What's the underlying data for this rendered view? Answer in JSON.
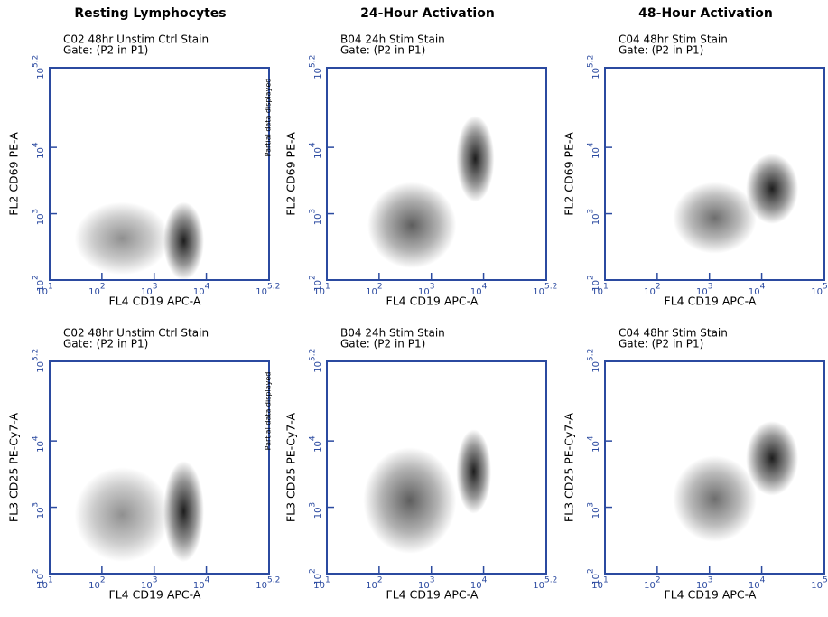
{
  "chart_data": [
    {
      "type": "density",
      "title": "Resting Lymphocytes",
      "sample": "C02 48hr Unstim Ctrl Stain",
      "gate": "Gate: (P2 in P1)",
      "xlabel": "FL4 CD19 APC-A",
      "ylabel": "FL2 CD69 PE-A",
      "log_scale": true,
      "xlim": [
        10,
        158489
      ],
      "ylim": [
        100,
        158489
      ],
      "xticks": [
        {
          "value": 10,
          "label": "10",
          "sup": "1"
        },
        {
          "value": 100,
          "label": "10",
          "sup": "2"
        },
        {
          "value": 1000,
          "label": "10",
          "sup": "3"
        },
        {
          "value": 10000,
          "label": "10",
          "sup": "4"
        },
        {
          "value": 158489,
          "label": "10",
          "sup": "5.2"
        }
      ],
      "yticks": [
        {
          "value": 100,
          "label": "10",
          "sup": "2"
        },
        {
          "value": 1000,
          "label": "10",
          "sup": "3"
        },
        {
          "value": 10000,
          "label": "10",
          "sup": "4"
        },
        {
          "value": 158489,
          "label": "10",
          "sup": "5.2"
        }
      ],
      "populations": [
        {
          "x_range": [
            30,
            2000
          ],
          "y_range": [
            120,
            1500
          ],
          "color": "#8a8a8a"
        },
        {
          "x_range": [
            1500,
            9000
          ],
          "y_range": [
            100,
            1500
          ],
          "color": "#111111"
        }
      ]
    },
    {
      "type": "density",
      "title": "24-Hour Activation",
      "sample": "B04 24h Stim Stain",
      "gate": "Gate: (P2 in P1)",
      "note": "Partial data displayed",
      "xlabel": "FL4 CD19 APC-A",
      "ylabel": "FL2 CD69 PE-A",
      "log_scale": true,
      "xlim": [
        10,
        158489
      ],
      "ylim": [
        100,
        158489
      ],
      "xticks": [
        {
          "value": 10,
          "label": "10",
          "sup": "1"
        },
        {
          "value": 100,
          "label": "10",
          "sup": "2"
        },
        {
          "value": 1000,
          "label": "10",
          "sup": "3"
        },
        {
          "value": 10000,
          "label": "10",
          "sup": "4"
        },
        {
          "value": 158489,
          "label": "10",
          "sup": "5.2"
        }
      ],
      "yticks": [
        {
          "value": 100,
          "label": "10",
          "sup": "2"
        },
        {
          "value": 1000,
          "label": "10",
          "sup": "3"
        },
        {
          "value": 10000,
          "label": "10",
          "sup": "4"
        },
        {
          "value": 158489,
          "label": "10",
          "sup": "5.2"
        }
      ],
      "populations": [
        {
          "x_range": [
            60,
            3000
          ],
          "y_range": [
            150,
            3000
          ],
          "color": "#555555"
        },
        {
          "x_range": [
            3000,
            16000
          ],
          "y_range": [
            1500,
            30000
          ],
          "color": "#111111"
        }
      ]
    },
    {
      "type": "density",
      "title": "48-Hour Activation",
      "sample": "C04 48hr Stim Stain",
      "gate": "Gate: (P2 in P1)",
      "xlabel": "FL4 CD19 APC-A",
      "ylabel": "FL2 CD69 PE-A",
      "log_scale": true,
      "xlim": [
        10,
        158489
      ],
      "ylim": [
        100,
        158489
      ],
      "xticks": [
        {
          "value": 10,
          "label": "10",
          "sup": "1"
        },
        {
          "value": 100,
          "label": "10",
          "sup": "2"
        },
        {
          "value": 1000,
          "label": "10",
          "sup": "3"
        },
        {
          "value": 10000,
          "label": "10",
          "sup": "4"
        },
        {
          "value": 158489,
          "label": "10",
          "sup": "5.2"
        }
      ],
      "yticks": [
        {
          "value": 100,
          "label": "10",
          "sup": "2"
        },
        {
          "value": 1000,
          "label": "10",
          "sup": "3"
        },
        {
          "value": 10000,
          "label": "10",
          "sup": "4"
        },
        {
          "value": 158489,
          "label": "10",
          "sup": "5.2"
        }
      ],
      "populations": [
        {
          "x_range": [
            200,
            8000
          ],
          "y_range": [
            250,
            3000
          ],
          "color": "#666666"
        },
        {
          "x_range": [
            5000,
            50000
          ],
          "y_range": [
            700,
            8000
          ],
          "color": "#111111"
        }
      ]
    },
    {
      "type": "density",
      "sample": "C02 48hr Unstim Ctrl Stain",
      "gate": "Gate: (P2 in P1)",
      "xlabel": "FL4 CD19 APC-A",
      "ylabel": "FL3 CD25 PE-Cy7-A",
      "log_scale": true,
      "xlim": [
        10,
        158489
      ],
      "ylim": [
        100,
        158489
      ],
      "xticks": [
        {
          "value": 10,
          "label": "10",
          "sup": "1"
        },
        {
          "value": 100,
          "label": "10",
          "sup": "2"
        },
        {
          "value": 1000,
          "label": "10",
          "sup": "3"
        },
        {
          "value": 10000,
          "label": "10",
          "sup": "4"
        },
        {
          "value": 158489,
          "label": "10",
          "sup": "5.2"
        }
      ],
      "yticks": [
        {
          "value": 100,
          "label": "10",
          "sup": "2"
        },
        {
          "value": 1000,
          "label": "10",
          "sup": "3"
        },
        {
          "value": 10000,
          "label": "10",
          "sup": "4"
        },
        {
          "value": 158489,
          "label": "10",
          "sup": "5.2"
        }
      ],
      "populations": [
        {
          "x_range": [
            30,
            2000
          ],
          "y_range": [
            150,
            4000
          ],
          "color": "#8a8a8a"
        },
        {
          "x_range": [
            1500,
            9000
          ],
          "y_range": [
            150,
            5000
          ],
          "color": "#111111"
        }
      ]
    },
    {
      "type": "density",
      "sample": "B04 24h Stim Stain",
      "gate": "Gate: (P2 in P1)",
      "note": "Partial data displayed",
      "xlabel": "FL4 CD19 APC-A",
      "ylabel": "FL3 CD25 PE-Cy7-A",
      "log_scale": true,
      "xlim": [
        10,
        158489
      ],
      "ylim": [
        100,
        158489
      ],
      "xticks": [
        {
          "value": 10,
          "label": "10",
          "sup": "1"
        },
        {
          "value": 100,
          "label": "10",
          "sup": "2"
        },
        {
          "value": 1000,
          "label": "10",
          "sup": "3"
        },
        {
          "value": 10000,
          "label": "10",
          "sup": "4"
        },
        {
          "value": 158489,
          "label": "10",
          "sup": "5.2"
        }
      ],
      "yticks": [
        {
          "value": 100,
          "label": "10",
          "sup": "2"
        },
        {
          "value": 1000,
          "label": "10",
          "sup": "3"
        },
        {
          "value": 10000,
          "label": "10",
          "sup": "4"
        },
        {
          "value": 158489,
          "label": "10",
          "sup": "5.2"
        }
      ],
      "populations": [
        {
          "x_range": [
            50,
            3000
          ],
          "y_range": [
            200,
            8000
          ],
          "color": "#555555"
        },
        {
          "x_range": [
            3000,
            14000
          ],
          "y_range": [
            800,
            15000
          ],
          "color": "#111111"
        }
      ]
    },
    {
      "type": "density",
      "sample": "C04 48hr Stim Stain",
      "gate": "Gate: (P2 in P1)",
      "xlabel": "FL4 CD19 APC-A",
      "ylabel": "FL3 CD25 PE-Cy7-A",
      "log_scale": true,
      "xlim": [
        10,
        158489
      ],
      "ylim": [
        100,
        158489
      ],
      "xticks": [
        {
          "value": 10,
          "label": "10",
          "sup": "1"
        },
        {
          "value": 100,
          "label": "10",
          "sup": "2"
        },
        {
          "value": 1000,
          "label": "10",
          "sup": "3"
        },
        {
          "value": 10000,
          "label": "10",
          "sup": "4"
        },
        {
          "value": 158489,
          "label": "10",
          "sup": "5.2"
        }
      ],
      "yticks": [
        {
          "value": 100,
          "label": "10",
          "sup": "2"
        },
        {
          "value": 1000,
          "label": "10",
          "sup": "3"
        },
        {
          "value": 10000,
          "label": "10",
          "sup": "4"
        },
        {
          "value": 158489,
          "label": "10",
          "sup": "5.2"
        }
      ],
      "populations": [
        {
          "x_range": [
            200,
            8000
          ],
          "y_range": [
            300,
            6000
          ],
          "color": "#666666"
        },
        {
          "x_range": [
            5000,
            50000
          ],
          "y_range": [
            1500,
            20000
          ],
          "color": "#111111"
        }
      ]
    }
  ]
}
